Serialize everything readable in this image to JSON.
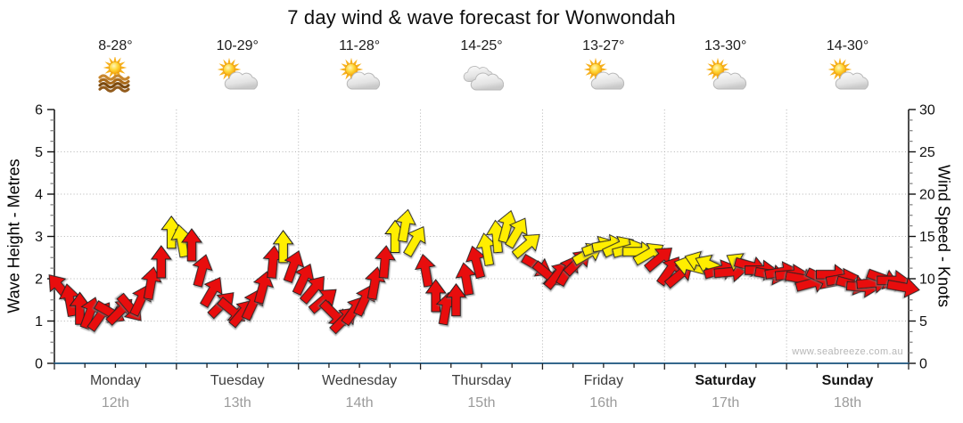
{
  "title": "7 day wind & wave forecast for Wonwondah",
  "watermark": "www.seabreeze.com.au",
  "left_axis": {
    "label": "Wave Height - Metres",
    "min": 0,
    "max": 6,
    "ticks": [
      0,
      1,
      2,
      3,
      4,
      5,
      6
    ]
  },
  "right_axis": {
    "label": "Wind Speed - Knots",
    "min": 0,
    "max": 30,
    "ticks": [
      0,
      5,
      10,
      15,
      20,
      25,
      30
    ]
  },
  "days": [
    {
      "name": "Monday",
      "date": "12th",
      "temp": "8-28°",
      "icon": "sun-water",
      "bold": false
    },
    {
      "name": "Tuesday",
      "date": "13th",
      "temp": "10-29°",
      "icon": "sun-cloud",
      "bold": false
    },
    {
      "name": "Wednesday",
      "date": "14th",
      "temp": "11-28°",
      "icon": "sun-cloud",
      "bold": false
    },
    {
      "name": "Thursday",
      "date": "15th",
      "temp": "14-25°",
      "icon": "clouds",
      "bold": false
    },
    {
      "name": "Friday",
      "date": "16th",
      "temp": "13-27°",
      "icon": "sun-cloud",
      "bold": false
    },
    {
      "name": "Saturday",
      "date": "17th",
      "temp": "13-30°",
      "icon": "sun-cloud",
      "bold": true
    },
    {
      "name": "Sunday",
      "date": "18th",
      "temp": "14-30°",
      "icon": "sun-cloud",
      "bold": true
    }
  ],
  "colors": {
    "arrow_red": "#e80c0c",
    "arrow_yellow": "#ffee00",
    "arrow_outline": "#222222",
    "grid": "#b3b3b3",
    "axis": "#111111",
    "bottom_axis": "#35678c",
    "day_label": "#3d3d3d",
    "date_label": "#9b9b9b"
  },
  "chart_data": {
    "type": "scatter",
    "variant": "wind-direction-arrows",
    "title": "7 day wind & wave forecast for Wonwondah",
    "ylabel_left": "Wave Height - Metres",
    "ylabel_right": "Wind Speed - Knots",
    "ylim_left": [
      0,
      6
    ],
    "ylim_right": [
      0,
      30
    ],
    "grid": "dotted horizontal every 5 knots, dotted vertical at day boundaries",
    "samples_per_day": 12,
    "point_format": "[wind_speed_knots, arrow_direction_deg_clockwise_from_up, color r|y]",
    "color_rule": "red = lighter winds (< ~13 kn), yellow = stronger band (~13-17 kn)",
    "series": [
      {
        "day": "Monday",
        "points": [
          [
            9,
            -40,
            "r"
          ],
          [
            7.5,
            -10,
            "r"
          ],
          [
            6.5,
            0,
            "r"
          ],
          [
            6,
            20,
            "r"
          ],
          [
            5.6,
            35,
            "r"
          ],
          [
            6,
            120,
            "r"
          ],
          [
            6.2,
            45,
            "r"
          ],
          [
            6.5,
            140,
            "r"
          ],
          [
            7.5,
            25,
            "r"
          ],
          [
            9.5,
            10,
            "r"
          ],
          [
            12,
            0,
            "r"
          ],
          [
            15.5,
            0,
            "y"
          ]
        ]
      },
      {
        "day": "Tuesday",
        "points": [
          [
            14.5,
            -10,
            "y"
          ],
          [
            14,
            0,
            "r"
          ],
          [
            11,
            15,
            "r"
          ],
          [
            8.5,
            30,
            "r"
          ],
          [
            7,
            45,
            "r"
          ],
          [
            6.2,
            130,
            "r"
          ],
          [
            6,
            40,
            "r"
          ],
          [
            7,
            25,
            "r"
          ],
          [
            9,
            15,
            "r"
          ],
          [
            12,
            5,
            "r"
          ],
          [
            13.8,
            0,
            "y"
          ],
          [
            11.5,
            20,
            "r"
          ]
        ]
      },
      {
        "day": "Wednesday",
        "points": [
          [
            10,
            25,
            "r"
          ],
          [
            8.8,
            40,
            "r"
          ],
          [
            7.5,
            50,
            "r"
          ],
          [
            5.8,
            135,
            "r"
          ],
          [
            5.2,
            45,
            "r"
          ],
          [
            6.3,
            35,
            "r"
          ],
          [
            7.5,
            25,
            "r"
          ],
          [
            9.5,
            10,
            "r"
          ],
          [
            12,
            5,
            "r"
          ],
          [
            15,
            0,
            "y"
          ],
          [
            16.3,
            10,
            "y"
          ],
          [
            14.5,
            30,
            "y"
          ]
        ]
      },
      {
        "day": "Thursday",
        "points": [
          [
            11,
            -10,
            "r"
          ],
          [
            8,
            0,
            "r"
          ],
          [
            6.5,
            10,
            "r"
          ],
          [
            7.5,
            0,
            "r"
          ],
          [
            10,
            -10,
            "r"
          ],
          [
            12,
            -15,
            "r"
          ],
          [
            13.5,
            -10,
            "y"
          ],
          [
            15,
            -5,
            "y"
          ],
          [
            16.2,
            15,
            "y"
          ],
          [
            15.5,
            30,
            "y"
          ],
          [
            14,
            50,
            "y"
          ],
          [
            11.5,
            120,
            "r"
          ]
        ]
      },
      {
        "day": "Friday",
        "points": [
          [
            10.5,
            130,
            "r"
          ],
          [
            10.5,
            40,
            "r"
          ],
          [
            11,
            30,
            "r"
          ],
          [
            12,
            45,
            "r"
          ],
          [
            13,
            60,
            "y"
          ],
          [
            13.8,
            70,
            "y"
          ],
          [
            14,
            80,
            "y"
          ],
          [
            13.8,
            65,
            "y"
          ],
          [
            13.5,
            75,
            "y"
          ],
          [
            13.2,
            90,
            "y"
          ],
          [
            13,
            60,
            "y"
          ],
          [
            12.4,
            50,
            "r"
          ]
        ]
      },
      {
        "day": "Saturday",
        "points": [
          [
            11,
            35,
            "r"
          ],
          [
            10.5,
            50,
            "r"
          ],
          [
            11.5,
            -75,
            "y"
          ],
          [
            12,
            -70,
            "y"
          ],
          [
            11.6,
            -65,
            "y"
          ],
          [
            11,
            75,
            "r"
          ],
          [
            10.8,
            85,
            "r"
          ],
          [
            11.8,
            -60,
            "y"
          ],
          [
            11.5,
            105,
            "r"
          ],
          [
            11,
            90,
            "r"
          ],
          [
            10.5,
            100,
            "r"
          ],
          [
            10.8,
            80,
            "r"
          ]
        ]
      },
      {
        "day": "Sunday",
        "points": [
          [
            10.5,
            85,
            "r"
          ],
          [
            10,
            100,
            "r"
          ],
          [
            9.5,
            75,
            "r"
          ],
          [
            10,
            115,
            "r"
          ],
          [
            10.5,
            90,
            "r"
          ],
          [
            10,
            80,
            "r"
          ],
          [
            9.3,
            105,
            "r"
          ],
          [
            9,
            95,
            "r"
          ],
          [
            9.5,
            85,
            "r"
          ],
          [
            10,
            110,
            "r"
          ],
          [
            9.8,
            90,
            "r"
          ],
          [
            9,
            100,
            "r"
          ]
        ]
      }
    ]
  }
}
